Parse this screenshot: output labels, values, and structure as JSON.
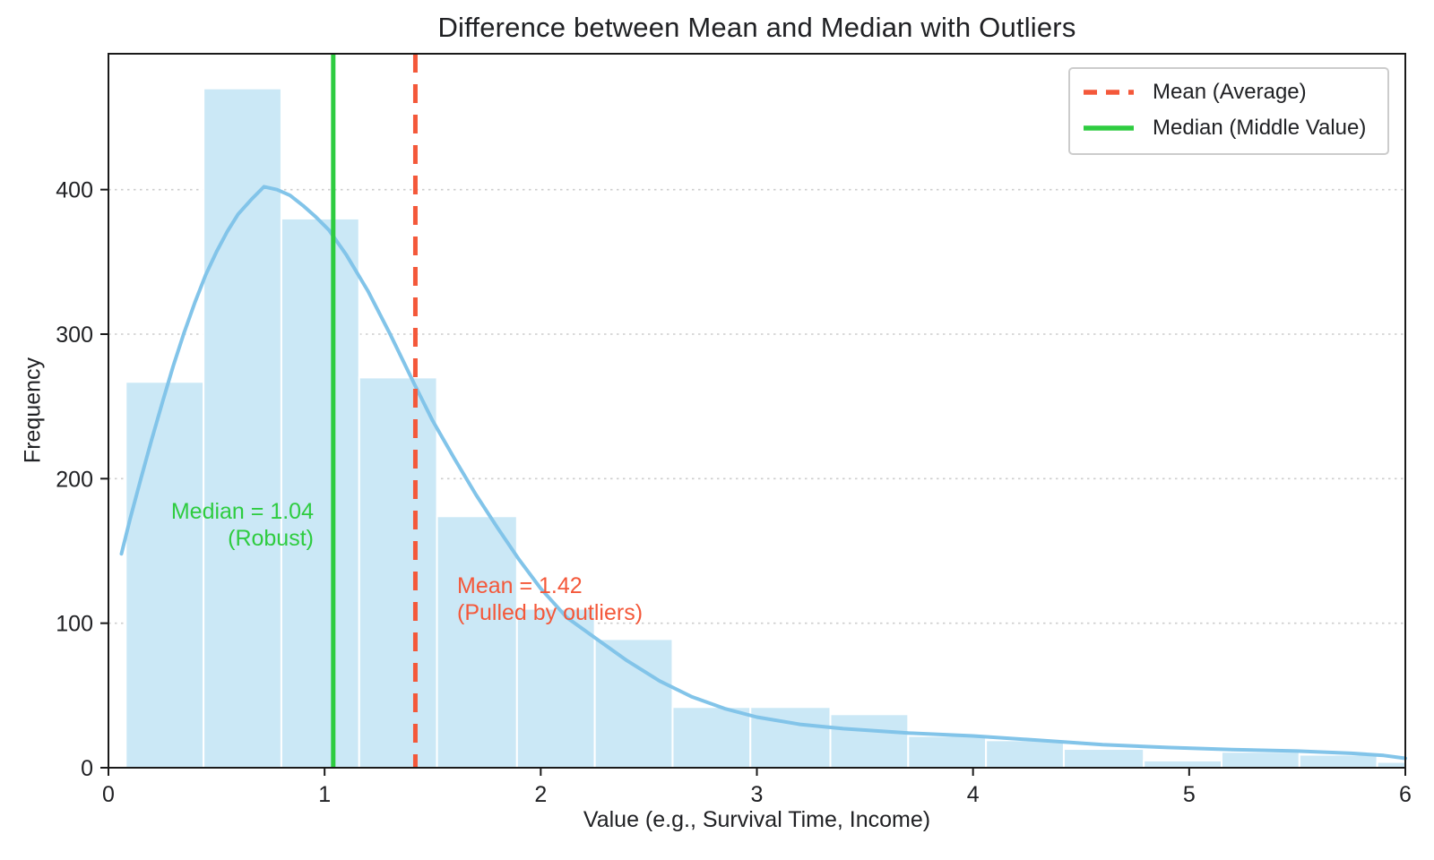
{
  "chart_data": {
    "type": "bar",
    "subtype": "histogram_with_kde",
    "title": "Difference between Mean and Median with Outliers",
    "xlabel": "Value (e.g., Survival Time, Income)",
    "ylabel": "Frequency",
    "xlim": [
      0,
      6
    ],
    "ylim": [
      0,
      494
    ],
    "xticks": [
      0,
      1,
      2,
      3,
      4,
      5,
      6
    ],
    "yticks": [
      0,
      100,
      200,
      300,
      400
    ],
    "grid": {
      "axis": "y",
      "style": "dotted"
    },
    "legend_position": "upper right",
    "bars": {
      "bin_edges": [
        0.08,
        0.44,
        0.8,
        1.16,
        1.52,
        1.89,
        2.25,
        2.61,
        2.97,
        3.34,
        3.7,
        4.06,
        4.42,
        4.79,
        5.15,
        5.51,
        5.87,
        6.0
      ],
      "counts": [
        267,
        470,
        380,
        270,
        174,
        110,
        89,
        42,
        42,
        37,
        22,
        19,
        13,
        5,
        11,
        9,
        4
      ],
      "note": "last bin clipped at x=6"
    },
    "kde": [
      [
        0.06,
        148
      ],
      [
        0.1,
        172
      ],
      [
        0.15,
        200
      ],
      [
        0.2,
        227
      ],
      [
        0.25,
        253
      ],
      [
        0.3,
        278
      ],
      [
        0.35,
        301
      ],
      [
        0.4,
        322
      ],
      [
        0.45,
        341
      ],
      [
        0.5,
        357
      ],
      [
        0.55,
        371
      ],
      [
        0.6,
        383
      ],
      [
        0.66,
        393
      ],
      [
        0.72,
        402
      ],
      [
        0.78,
        400
      ],
      [
        0.84,
        396
      ],
      [
        0.9,
        389
      ],
      [
        0.96,
        381
      ],
      [
        1.02,
        372
      ],
      [
        1.1,
        355
      ],
      [
        1.2,
        330
      ],
      [
        1.3,
        301
      ],
      [
        1.42,
        264
      ],
      [
        1.5,
        240
      ],
      [
        1.6,
        214
      ],
      [
        1.7,
        189
      ],
      [
        1.8,
        166
      ],
      [
        1.9,
        144
      ],
      [
        2.0,
        124
      ],
      [
        2.12,
        104
      ],
      [
        2.25,
        90
      ],
      [
        2.4,
        74
      ],
      [
        2.55,
        60
      ],
      [
        2.7,
        49
      ],
      [
        2.85,
        41
      ],
      [
        3.0,
        35
      ],
      [
        3.2,
        30
      ],
      [
        3.4,
        27
      ],
      [
        3.7,
        24
      ],
      [
        4.0,
        22
      ],
      [
        4.3,
        19
      ],
      [
        4.6,
        16
      ],
      [
        4.9,
        14
      ],
      [
        5.2,
        12.5
      ],
      [
        5.5,
        11.5
      ],
      [
        5.75,
        10
      ],
      [
        5.9,
        8.5
      ],
      [
        6.0,
        6.5
      ]
    ],
    "mean": {
      "value": 1.42,
      "legend_label": "Mean (Average)",
      "annotation_line1": "Mean = 1.42",
      "annotation_line2": "(Pulled by outliers)",
      "color": "#F4583A",
      "line_style": "dashed"
    },
    "median": {
      "value": 1.04,
      "legend_label": "Median (Middle Value)",
      "annotation_line1": "Median = 1.04",
      "annotation_line2": "(Robust)",
      "color": "#2ECC40",
      "line_style": "solid"
    },
    "colors": {
      "bar_fill": "#CBE8F6",
      "bar_edge": "#FFFFFF",
      "kde_line": "#82C4E9",
      "grid_line": "#CDCDCD",
      "axis": "#1A1A1A",
      "text": "#202124",
      "legend_border": "#CCCCCC",
      "background": "#FFFFFF"
    }
  }
}
